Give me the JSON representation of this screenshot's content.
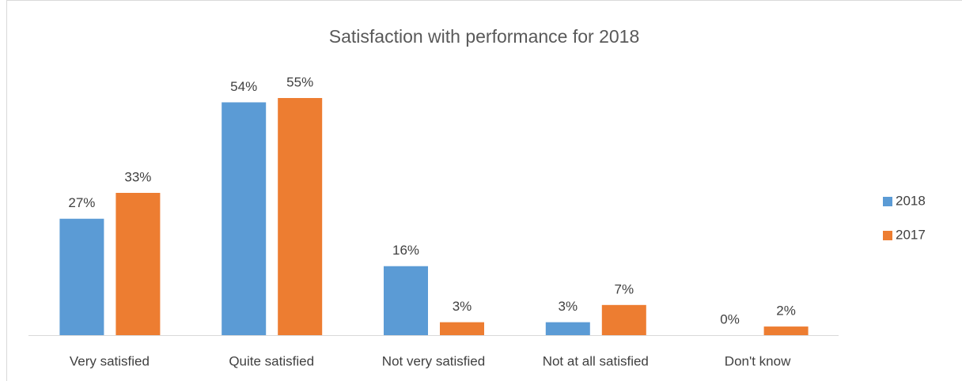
{
  "chart_data": {
    "type": "bar",
    "title": "Satisfaction with performance for 2018",
    "categories": [
      "Very satisfied",
      "Quite satisfied",
      "Not very satisfied",
      "Not at all satisfied",
      "Don't know"
    ],
    "series": [
      {
        "name": "2018",
        "color": "#5b9bd5",
        "values": [
          27,
          54,
          16,
          3,
          0
        ],
        "value_labels": [
          "27%",
          "54%",
          "16%",
          "3%",
          "0%"
        ]
      },
      {
        "name": "2017",
        "color": "#ed7d31",
        "values": [
          33,
          55,
          3,
          7,
          2
        ],
        "value_labels": [
          "33%",
          "55%",
          "3%",
          "7%",
          "2%"
        ]
      }
    ],
    "legend": "right"
  }
}
